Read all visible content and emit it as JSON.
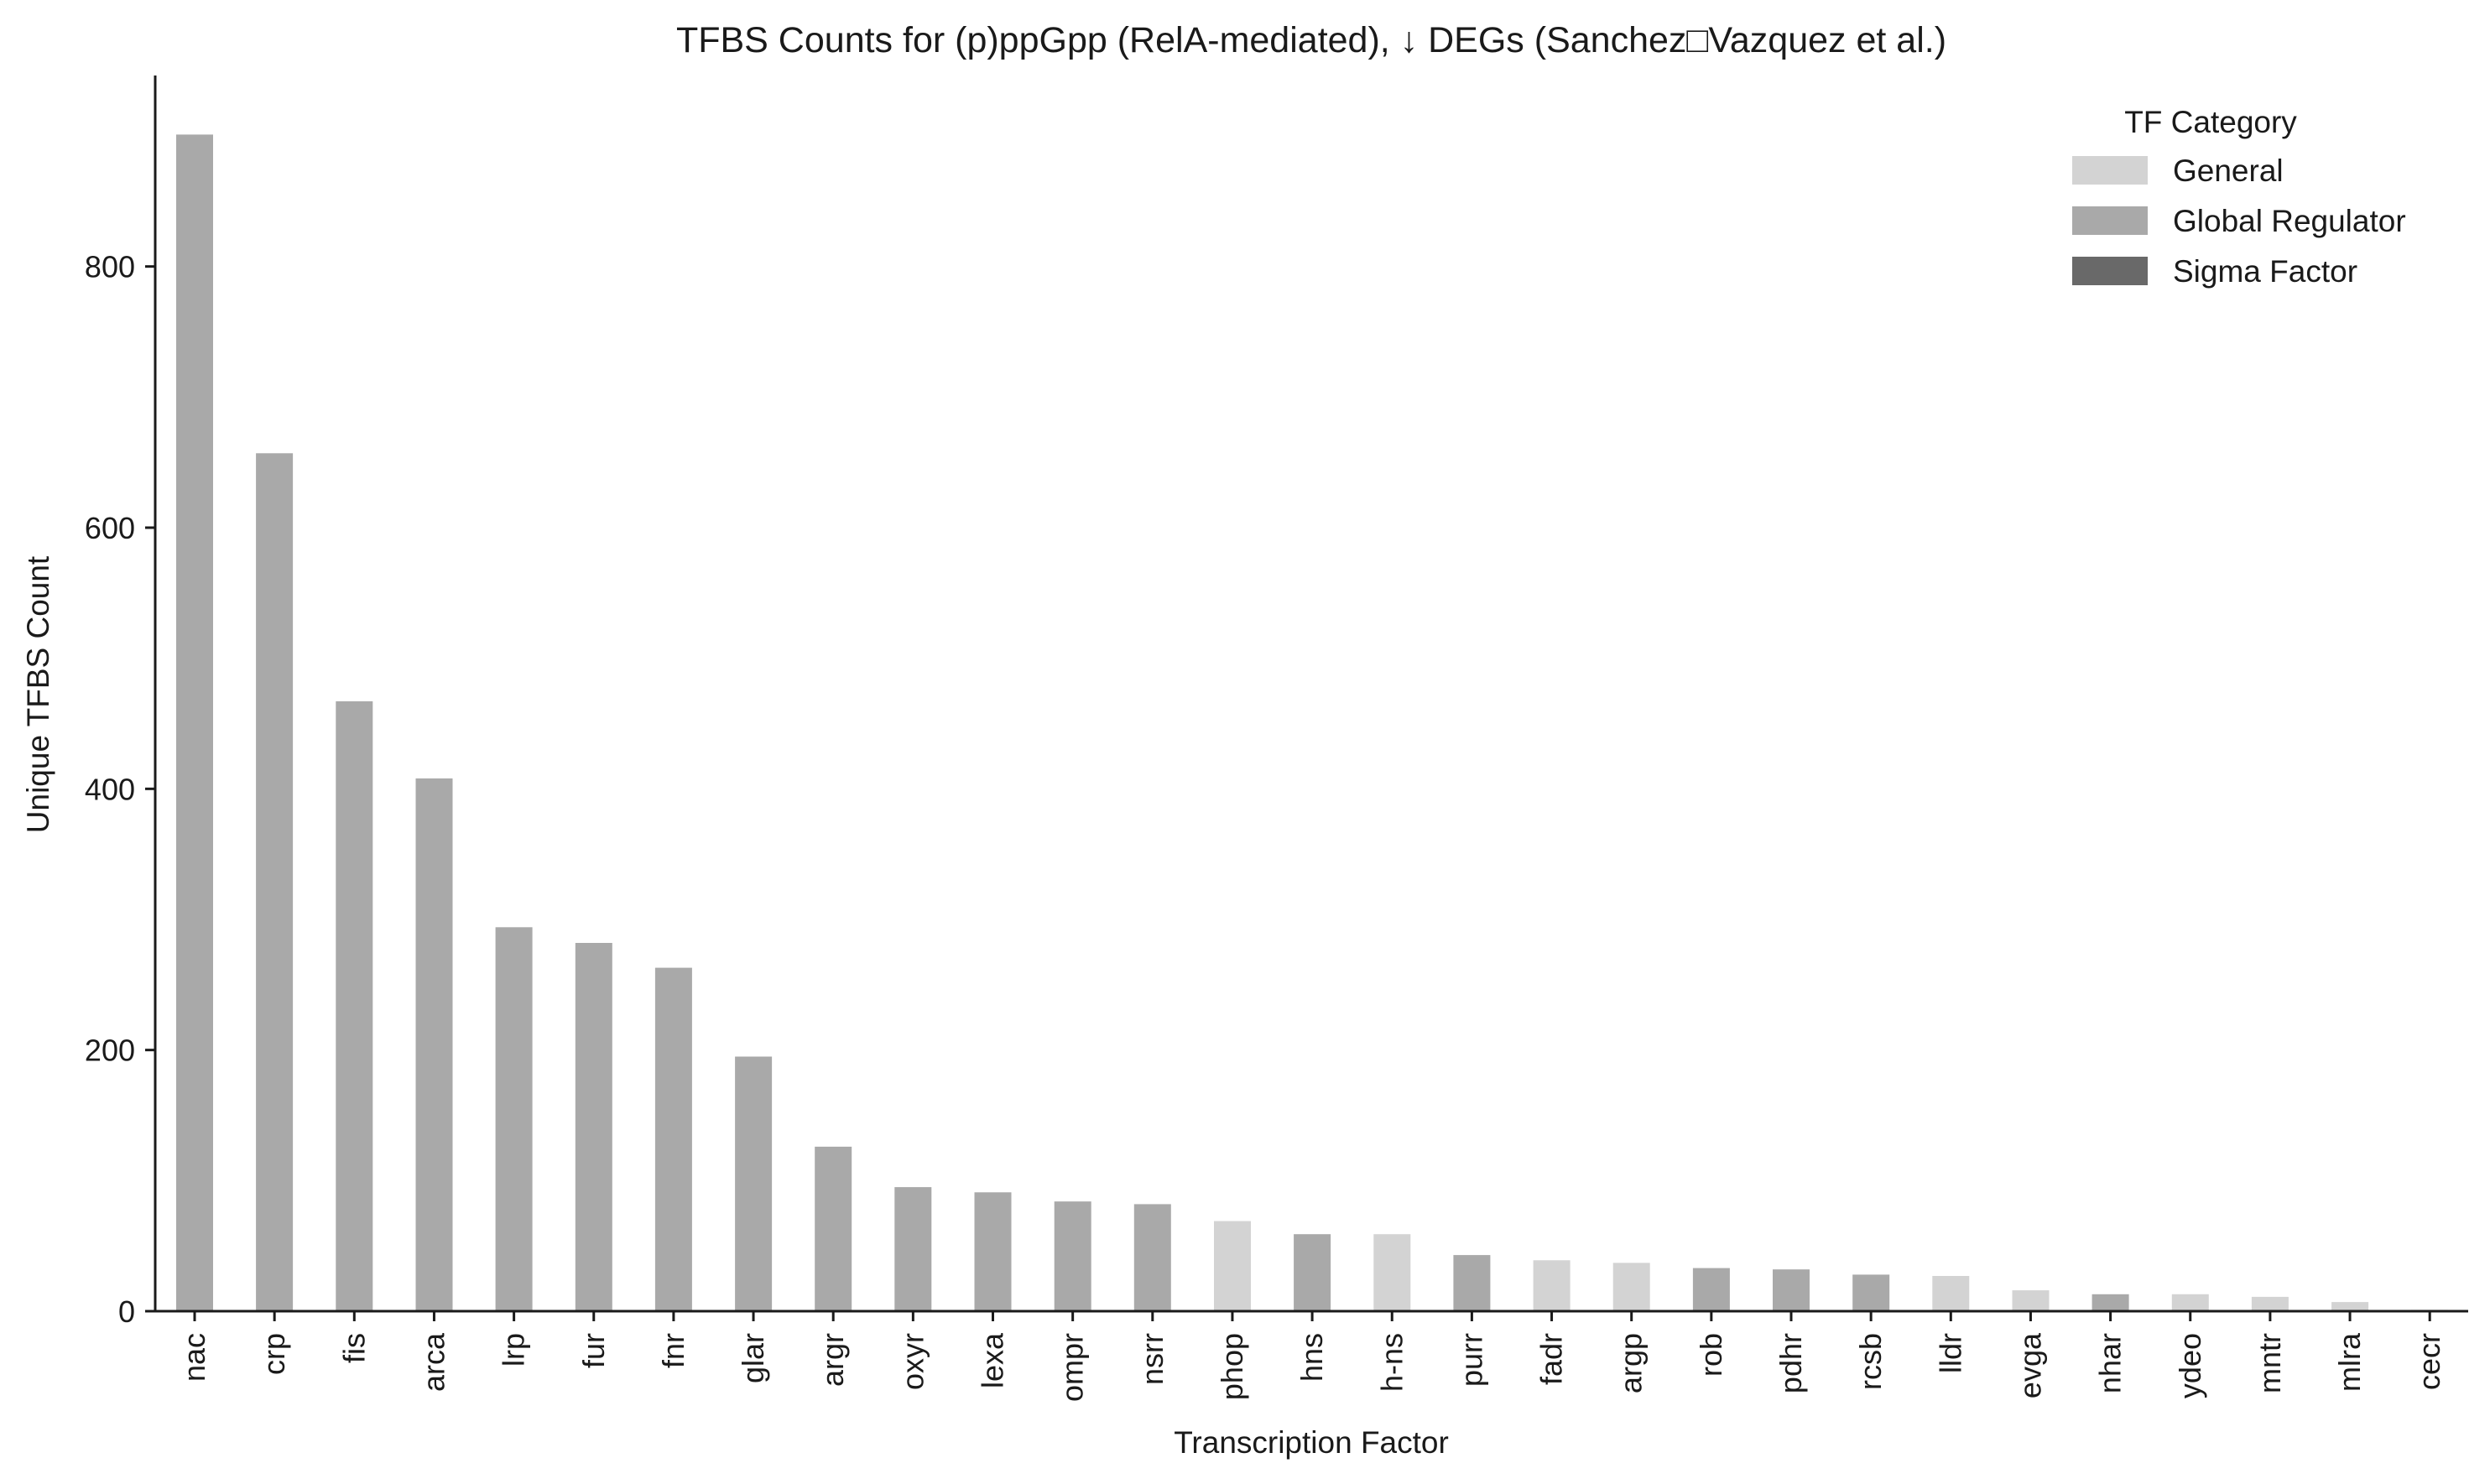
{
  "chart_data": {
    "type": "bar",
    "title": "TFBS Counts for (p)ppGpp (RelA-mediated), ↓ DEGs (Sanchez□Vazquez et al.)",
    "xlabel": "Transcription Factor",
    "ylabel": "Unique TFBS Count",
    "ylim": [
      0,
      950
    ],
    "yticks": [
      0,
      200,
      400,
      600,
      800
    ],
    "grid": false,
    "legend": {
      "title": "TF Category",
      "placement": "top-right",
      "entries": [
        {
          "name": "General",
          "color": "#d3d3d3"
        },
        {
          "name": "Global Regulator",
          "color": "#a9a9a9"
        },
        {
          "name": "Sigma Factor",
          "color": "#696969"
        }
      ]
    },
    "categories": [
      "nac",
      "crp",
      "fis",
      "arca",
      "lrp",
      "fur",
      "fnr",
      "glar",
      "argr",
      "oxyr",
      "lexa",
      "ompr",
      "nsrr",
      "phop",
      "hns",
      "h-ns",
      "purr",
      "fadr",
      "argp",
      "rob",
      "pdhr",
      "rcsb",
      "lldr",
      "evga",
      "nhar",
      "ydeo",
      "mntr",
      "mlra",
      "cecr"
    ],
    "values": [
      901,
      657,
      467,
      408,
      294,
      282,
      263,
      195,
      126,
      95,
      91,
      84,
      82,
      69,
      59,
      59,
      43,
      39,
      37,
      33,
      32,
      28,
      27,
      16,
      13,
      13,
      11,
      7,
      1
    ],
    "bar_category": [
      "Global Regulator",
      "Global Regulator",
      "Global Regulator",
      "Global Regulator",
      "Global Regulator",
      "Global Regulator",
      "Global Regulator",
      "Global Regulator",
      "Global Regulator",
      "Global Regulator",
      "Global Regulator",
      "Global Regulator",
      "Global Regulator",
      "General",
      "Global Regulator",
      "General",
      "Global Regulator",
      "General",
      "General",
      "Global Regulator",
      "Global Regulator",
      "Global Regulator",
      "General",
      "General",
      "Global Regulator",
      "General",
      "General",
      "General",
      "General"
    ]
  }
}
